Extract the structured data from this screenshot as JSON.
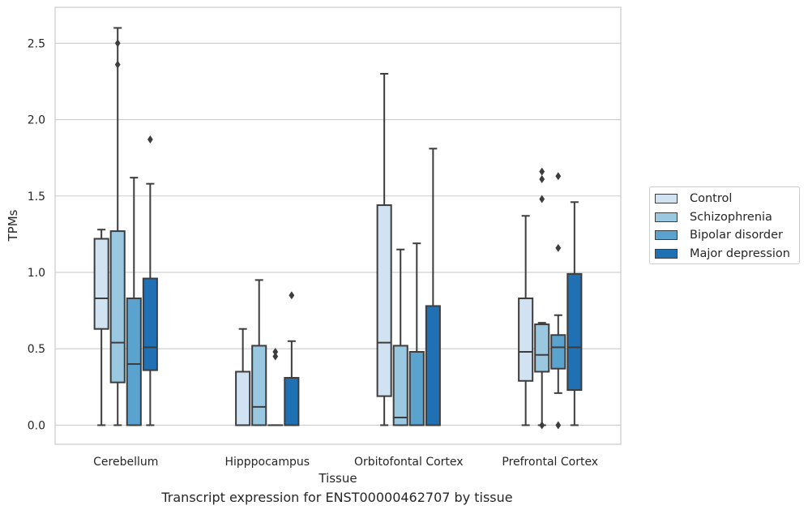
{
  "chart_data": {
    "type": "box",
    "ylabel": "TPMs",
    "xlabel": "Tissue",
    "caption": "Transcript expression for ENST00000462707 by tissue",
    "ylim": [
      -0.125,
      2.735
    ],
    "yticks": [
      "0.0",
      "0.5",
      "1.0",
      "1.5",
      "2.0",
      "2.5"
    ],
    "ytick_values": [
      0,
      0.5,
      1.0,
      1.5,
      2.0,
      2.5
    ],
    "grid": true,
    "legend_position": "right",
    "categories": [
      "Cerebellum",
      "Hipppocampus",
      "Orbitofontal Cortex",
      "Prefrontal Cortex"
    ],
    "series": [
      {
        "name": "Control",
        "color": "#d1e2f2",
        "boxes": [
          {
            "min": 0.0,
            "q1": 0.63,
            "median": 0.83,
            "q3": 1.22,
            "max": 1.28,
            "outliers": []
          },
          {
            "min": 0.0,
            "q1": 0.0,
            "median": 0.0,
            "q3": 0.35,
            "max": 0.63,
            "outliers": []
          },
          {
            "min": 0.0,
            "q1": 0.19,
            "median": 0.54,
            "q3": 1.44,
            "max": 2.3,
            "outliers": []
          },
          {
            "min": 0.0,
            "q1": 0.29,
            "median": 0.48,
            "q3": 0.83,
            "max": 1.37,
            "outliers": []
          }
        ]
      },
      {
        "name": "Schizophrenia",
        "color": "#9ac8e0",
        "boxes": [
          {
            "min": 0.0,
            "q1": 0.28,
            "median": 0.54,
            "q3": 1.27,
            "max": 2.6,
            "outliers": [
              2.5,
              2.36
            ]
          },
          {
            "min": 0.0,
            "q1": 0.0,
            "median": 0.12,
            "q3": 0.52,
            "max": 0.95,
            "outliers": []
          },
          {
            "min": 0.0,
            "q1": 0.0,
            "median": 0.05,
            "q3": 0.52,
            "max": 1.15,
            "outliers": []
          },
          {
            "min": 0.0,
            "q1": 0.35,
            "median": 0.46,
            "q3": 0.66,
            "max": 0.67,
            "outliers": [
              1.66,
              1.61,
              1.48,
              0.0
            ]
          }
        ]
      },
      {
        "name": "Bipolar disorder",
        "color": "#5ba3cf",
        "boxes": [
          {
            "min": 0.0,
            "q1": 0.0,
            "median": 0.4,
            "q3": 0.83,
            "max": 1.62,
            "outliers": []
          },
          {
            "min": 0.0,
            "q1": 0.0,
            "median": 0.0,
            "q3": 0.0,
            "max": 0.0,
            "outliers": [
              0.48,
              0.45
            ]
          },
          {
            "min": 0.0,
            "q1": 0.0,
            "median": 0.0,
            "q3": 0.48,
            "max": 1.19,
            "outliers": []
          },
          {
            "min": 0.21,
            "q1": 0.37,
            "median": 0.51,
            "q3": 0.59,
            "max": 0.72,
            "outliers": [
              1.63,
              1.16,
              0.0
            ]
          }
        ]
      },
      {
        "name": "Major depression",
        "color": "#2070b4",
        "boxes": [
          {
            "min": 0.0,
            "q1": 0.36,
            "median": 0.51,
            "q3": 0.96,
            "max": 1.58,
            "outliers": [
              1.87
            ]
          },
          {
            "min": 0.0,
            "q1": 0.0,
            "median": 0.0,
            "q3": 0.31,
            "max": 0.55,
            "outliers": [
              0.85
            ]
          },
          {
            "min": 0.0,
            "q1": 0.0,
            "median": 0.0,
            "q3": 0.78,
            "max": 1.81,
            "outliers": []
          },
          {
            "min": 0.0,
            "q1": 0.23,
            "median": 0.51,
            "q3": 0.99,
            "max": 1.46,
            "outliers": []
          }
        ]
      }
    ]
  }
}
